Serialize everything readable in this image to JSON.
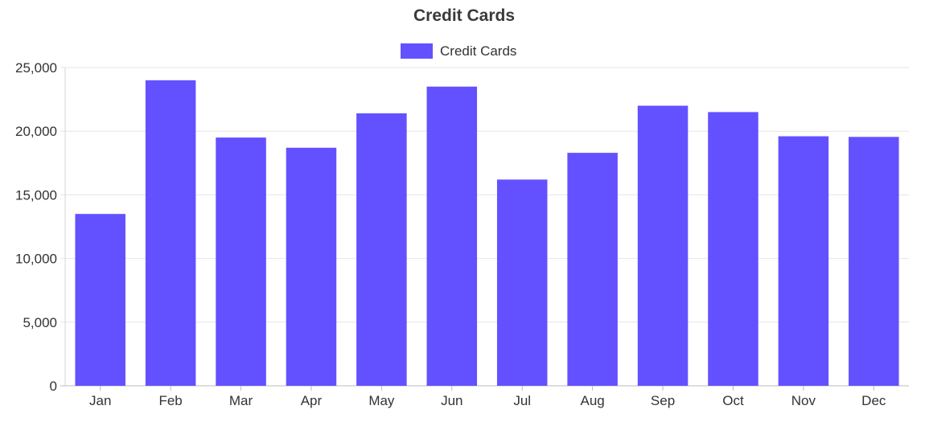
{
  "chart_data": {
    "type": "bar",
    "title": "Credit Cards",
    "categories": [
      "Jan",
      "Feb",
      "Mar",
      "Apr",
      "May",
      "Jun",
      "Jul",
      "Aug",
      "Sep",
      "Oct",
      "Nov",
      "Dec"
    ],
    "series": [
      {
        "name": "Credit Cards",
        "color": "#6351ff",
        "values": [
          13500,
          24000,
          19500,
          18700,
          21400,
          23500,
          16200,
          18300,
          22000,
          21500,
          19600,
          19550
        ]
      }
    ],
    "ylim": [
      0,
      25000
    ],
    "yticks": [
      0,
      5000,
      10000,
      15000,
      20000,
      25000
    ],
    "ytick_labels": [
      "0",
      "5,000",
      "10,000",
      "15,000",
      "20,000",
      "25,000"
    ],
    "xlabel": "",
    "ylabel": "",
    "grid": true,
    "legend_position": "top-center"
  }
}
